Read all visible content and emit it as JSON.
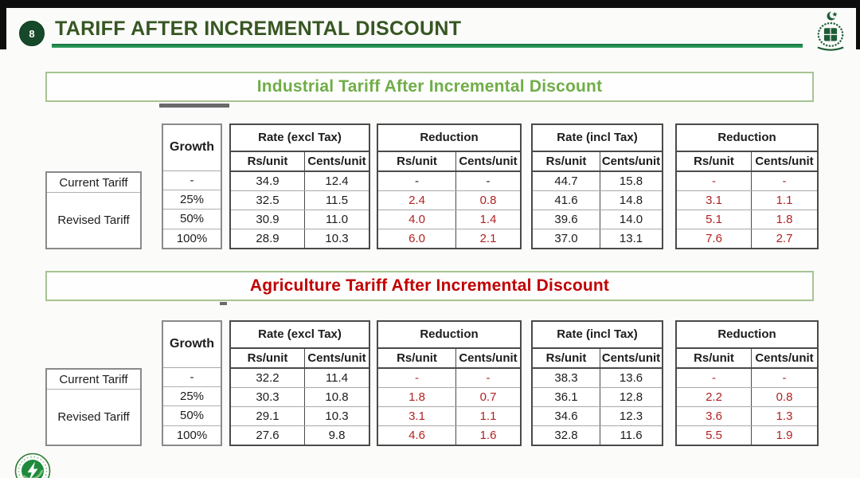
{
  "top_bar": {
    "page_number": "8",
    "title": "TARIFF AFTER INCREMENTAL DISCOUNT"
  },
  "logos": {
    "header_emblem": "government-emblem",
    "footer_badge": "power-utility-logo"
  },
  "colors": {
    "title_green": "#375623",
    "section_green": "#70ad47",
    "section_red": "#c00000",
    "value_red": "#b22222",
    "underline_green": "#2f9e57"
  },
  "table_template": {
    "growth_header": "Growth",
    "row_labels": [
      "Current Tariff",
      "Revised Tariff"
    ],
    "group_headers": [
      "Rate (excl Tax)",
      "Reduction",
      "Rate (incl Tax)",
      "Reduction"
    ],
    "subheaders": [
      "Rs/unit",
      "Cents/unit"
    ]
  },
  "sections": [
    {
      "title": "Industrial Tariff After Incremental Discount",
      "accent": "green",
      "rows": [
        {
          "growth": "-",
          "values": [
            "34.9",
            "12.4",
            "-",
            "-",
            "44.7",
            "15.8",
            "-",
            "-"
          ],
          "red_flags": [
            false,
            false,
            false,
            false,
            false,
            false,
            true,
            true
          ]
        },
        {
          "growth": "25%",
          "values": [
            "32.5",
            "11.5",
            "2.4",
            "0.8",
            "41.6",
            "14.8",
            "3.1",
            "1.1"
          ],
          "red_flags": [
            false,
            false,
            true,
            true,
            false,
            false,
            true,
            true
          ]
        },
        {
          "growth": "50%",
          "values": [
            "30.9",
            "11.0",
            "4.0",
            "1.4",
            "39.6",
            "14.0",
            "5.1",
            "1.8"
          ],
          "red_flags": [
            false,
            false,
            true,
            true,
            false,
            false,
            true,
            true
          ]
        },
        {
          "growth": "100%",
          "values": [
            "28.9",
            "10.3",
            "6.0",
            "2.1",
            "37.0",
            "13.1",
            "7.6",
            "2.7"
          ],
          "red_flags": [
            false,
            false,
            true,
            true,
            false,
            false,
            true,
            true
          ]
        }
      ]
    },
    {
      "title": "Agriculture Tariff After Incremental Discount",
      "accent": "red",
      "rows": [
        {
          "growth": "-",
          "values": [
            "32.2",
            "11.4",
            "-",
            "-",
            "38.3",
            "13.6",
            "-",
            "-"
          ],
          "red_flags": [
            false,
            false,
            true,
            true,
            false,
            false,
            true,
            true
          ]
        },
        {
          "growth": "25%",
          "values": [
            "30.3",
            "10.8",
            "1.8",
            "0.7",
            "36.1",
            "12.8",
            "2.2",
            "0.8"
          ],
          "red_flags": [
            false,
            false,
            true,
            true,
            false,
            false,
            true,
            true
          ]
        },
        {
          "growth": "50%",
          "values": [
            "29.1",
            "10.3",
            "3.1",
            "1.1",
            "34.6",
            "12.3",
            "3.6",
            "1.3"
          ],
          "red_flags": [
            false,
            false,
            true,
            true,
            false,
            false,
            true,
            true
          ]
        },
        {
          "growth": "100%",
          "values": [
            "27.6",
            "9.8",
            "4.6",
            "1.6",
            "32.8",
            "11.6",
            "5.5",
            "1.9"
          ],
          "red_flags": [
            false,
            false,
            true,
            true,
            false,
            false,
            true,
            true
          ]
        }
      ]
    }
  ]
}
